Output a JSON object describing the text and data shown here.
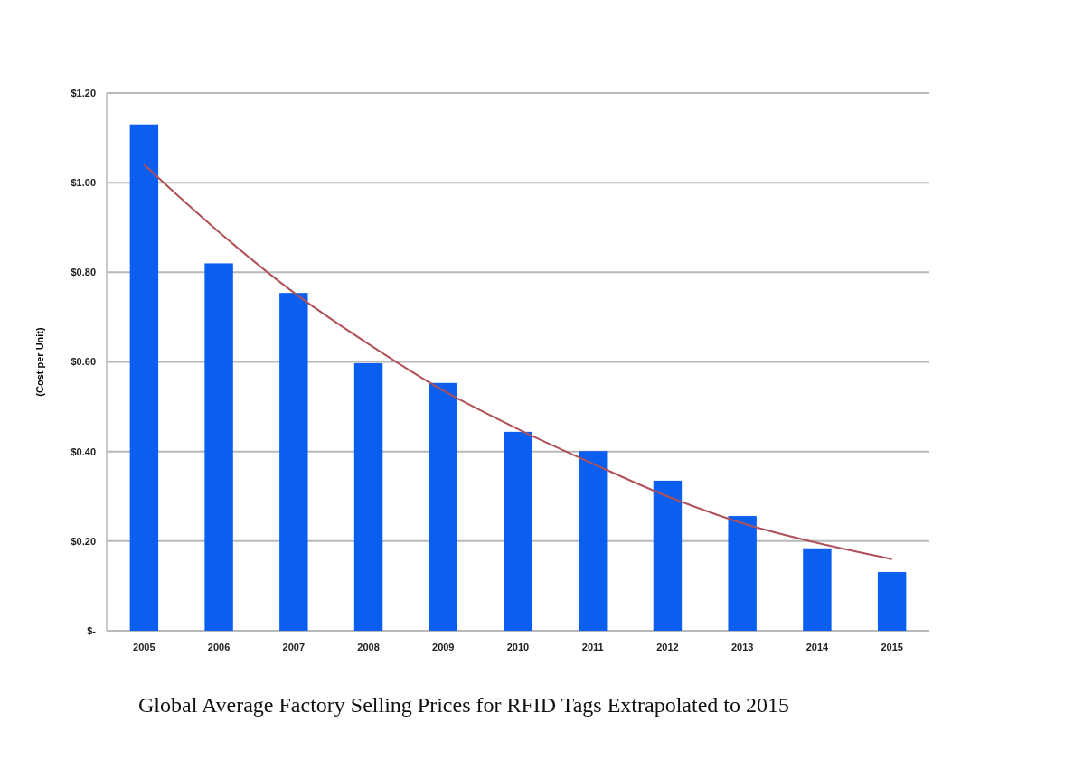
{
  "chart_data": {
    "type": "bar",
    "title": "Global Average Factory Selling Prices for RFID Tags Extrapolated to 2015",
    "ylabel": "(Cost per Unit)",
    "categories": [
      "2005",
      "2006",
      "2007",
      "2008",
      "2009",
      "2010",
      "2011",
      "2012",
      "2013",
      "2014",
      "2015"
    ],
    "series": [
      {
        "color": "#0a5ff0",
        "values": [
          1.13,
          0.82,
          0.754,
          0.597,
          0.553,
          0.444,
          0.401,
          0.335,
          0.256,
          0.184,
          0.131
        ]
      },
      {
        "type": "line",
        "color": "#b05058",
        "values": [
          1.04,
          0.89,
          0.755,
          0.64,
          0.536,
          0.45,
          0.373,
          0.3,
          0.24,
          0.196,
          0.16
        ]
      }
    ],
    "ylim": [
      0,
      1.2
    ],
    "yticks": [
      {
        "value": 0,
        "label": "$-"
      },
      {
        "value": 0.2,
        "label": "$0.20"
      },
      {
        "value": 0.4,
        "label": "$0.40"
      },
      {
        "value": 0.6,
        "label": "$0.60"
      },
      {
        "value": 0.8,
        "label": "$0.80"
      },
      {
        "value": 1,
        "label": "$1.00"
      },
      {
        "value": 1.2,
        "label": "$1.20"
      }
    ],
    "grid": "y",
    "marker": "none",
    "line_style": "solid"
  }
}
